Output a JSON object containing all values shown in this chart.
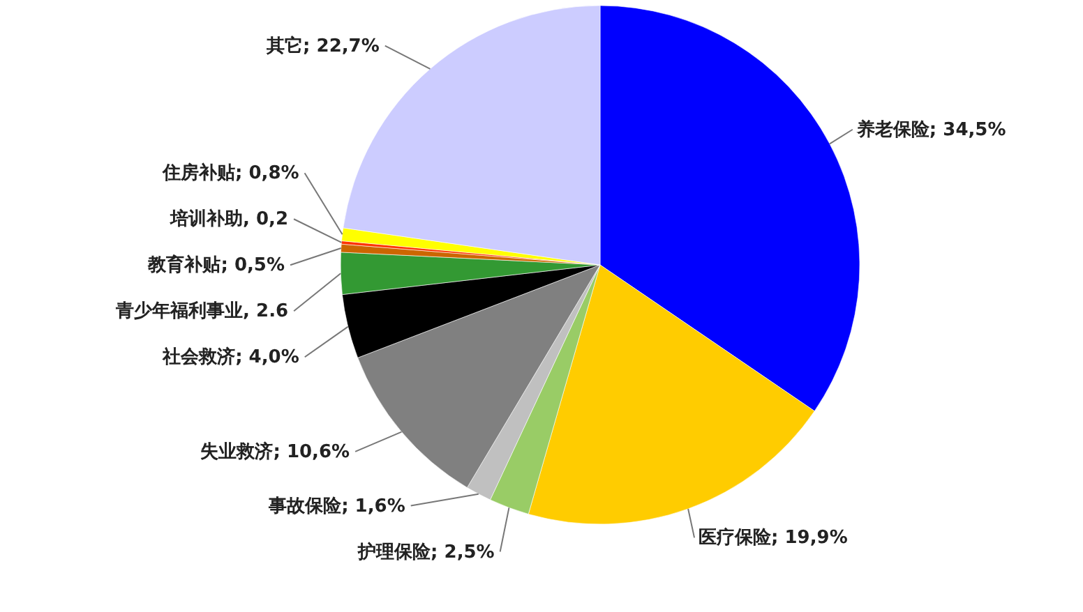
{
  "chart_data": {
    "type": "pie",
    "categories": [
      "养老保险",
      "医疗保险",
      "护理保险",
      "事故保险",
      "失业救济",
      "社会救济",
      "青少年福利事业",
      "教育补贴",
      "培训补助",
      "住房补贴",
      "其它"
    ],
    "values": [
      34.5,
      19.9,
      2.5,
      1.6,
      10.6,
      4.0,
      2.6,
      0.5,
      0.2,
      0.8,
      22.7
    ],
    "colors": [
      "#0000ff",
      "#ffcc00",
      "#99cc66",
      "#c0c0c0",
      "#808080",
      "#000000",
      "#339933",
      "#cc6600",
      "#ff3300",
      "#ffff00",
      "#ccccff"
    ],
    "value_labels": [
      "; 34,5%",
      "; 19,9%",
      "; 2,5%",
      "; 1,6%",
      "; 10,6%",
      "; 4,0%",
      ", 2.6",
      "; 0,5%",
      ", 0,2",
      "; 0,8%",
      "; 22,7%"
    ]
  }
}
